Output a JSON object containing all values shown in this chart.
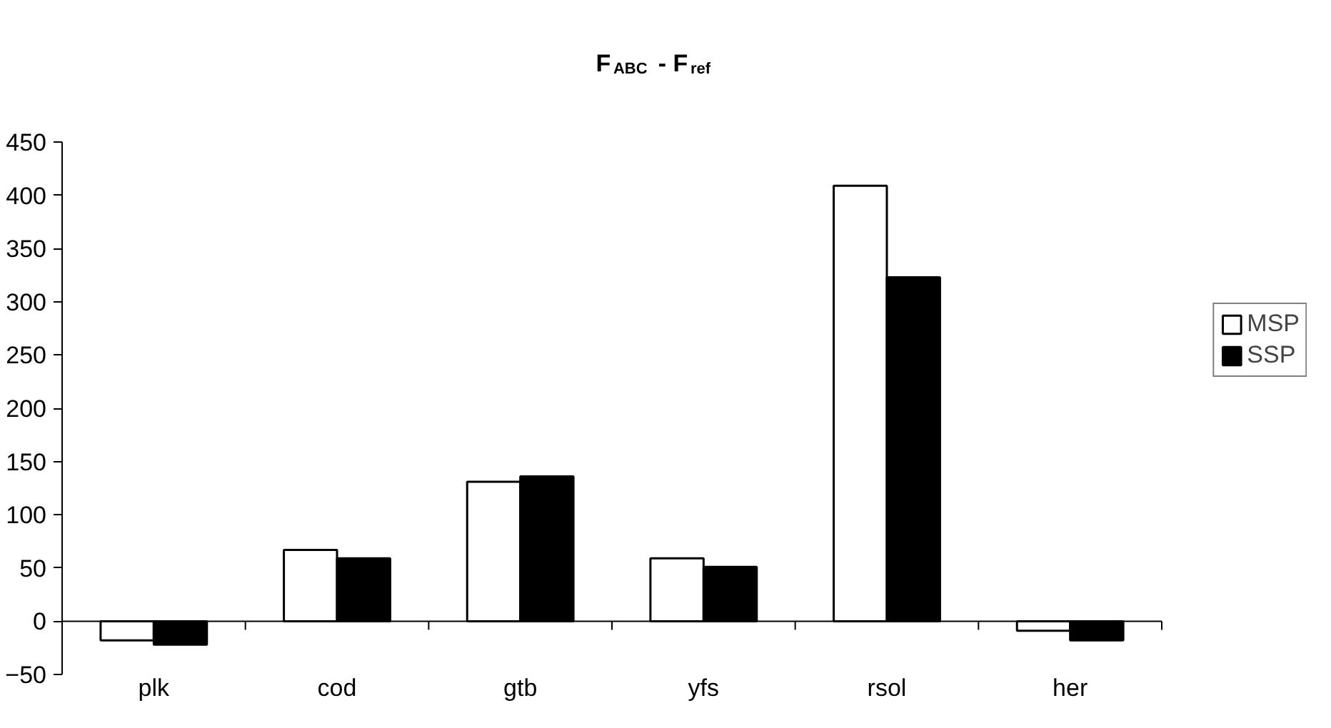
{
  "chart_data": {
    "type": "bar",
    "title": "F$_{ABC}$ - F$_{ref}$",
    "categories": [
      "plk",
      "cod",
      "gtb",
      "yfs",
      "rsol",
      "her"
    ],
    "series": [
      {
        "name": "MSP",
        "color": "#ffffff",
        "values": [
          -18,
          67,
          131,
          59,
          409,
          -9
        ]
      },
      {
        "name": "SSP",
        "color": "#000000",
        "values": [
          -22,
          59,
          136,
          51,
          323,
          -18
        ]
      }
    ],
    "ylim": [
      -50,
      450
    ],
    "yticks": [
      -50,
      0,
      50,
      100,
      150,
      200,
      250,
      300,
      350,
      400,
      450
    ],
    "grid": false,
    "legend": "right"
  }
}
